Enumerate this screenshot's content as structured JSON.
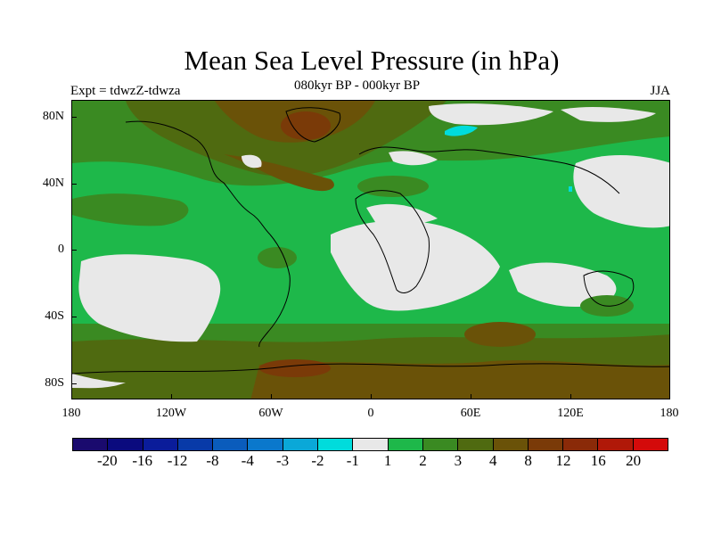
{
  "title": "Mean Sea Level Pressure (in hPa)",
  "subtitle": "080kyr BP - 000kyr BP",
  "left_label": "Expt = tdwzZ-tdwza",
  "right_label": "JJA",
  "map": {
    "lat_labels": [
      "80N",
      "40N",
      "0",
      "40S",
      "80S"
    ],
    "lon_labels": [
      "180",
      "120W",
      "60W",
      "0",
      "60E",
      "120E",
      "180"
    ]
  },
  "colorbar": {
    "colors": [
      "#1a0a6e",
      "#0a0a7e",
      "#0a1c9a",
      "#083aa8",
      "#0a5cbc",
      "#0a78cc",
      "#0aa8d8",
      "#00dcdc",
      "#e8e8e8",
      "#1eb84a",
      "#3a8a22",
      "#4f6a10",
      "#6a5208",
      "#7a3a08",
      "#8a2a08",
      "#b01808",
      "#d40a0a"
    ],
    "labels": [
      "-20",
      "-16",
      "-12",
      "-8",
      "-4",
      "-3",
      "-2",
      "-1",
      "1",
      "2",
      "3",
      "4",
      "8",
      "12",
      "16",
      "20"
    ]
  },
  "colors": {
    "grey": "#e8e8e8",
    "green": "#1eb84a",
    "darkgreen": "#3a8a22",
    "olive": "#4f6a10",
    "brown": "#6a5208",
    "darkbrown": "#7a3a08",
    "cyan": "#00dcdc"
  }
}
